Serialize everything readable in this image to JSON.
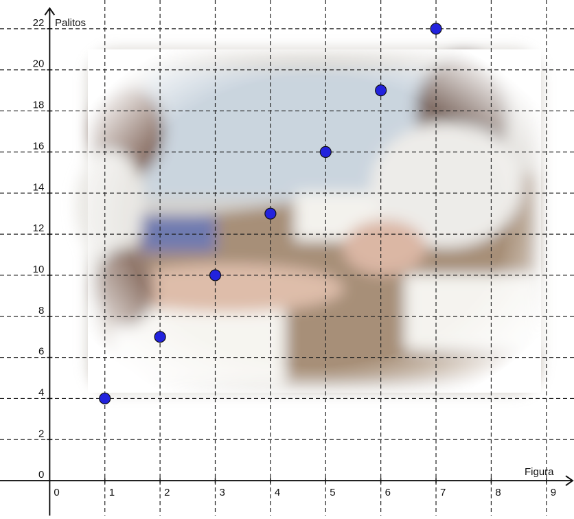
{
  "chart_data": {
    "type": "scatter",
    "title": "",
    "xlabel": "Figura",
    "ylabel": "Palitos",
    "xlim": [
      -0.9,
      9.5
    ],
    "ylim": [
      -1.7,
      23.4
    ],
    "x_ticks": [
      0,
      1,
      2,
      3,
      4,
      5,
      6,
      7,
      8,
      9
    ],
    "x_tick_labels": [
      "0",
      "1",
      "2",
      "3",
      "4",
      "5",
      "6",
      "7",
      "8",
      "9"
    ],
    "y_ticks": [
      0,
      2,
      4,
      6,
      8,
      10,
      12,
      14,
      16,
      18,
      20,
      22
    ],
    "y_tick_labels": [
      "0",
      "2",
      "4",
      "6",
      "8",
      "10",
      "12",
      "14",
      "16",
      "18",
      "20",
      "22"
    ],
    "grid": true,
    "grid_style": "dashed",
    "background_photo": true,
    "point_color": "#2222dd",
    "points": [
      {
        "x": 1,
        "y": 4
      },
      {
        "x": 2,
        "y": 7
      },
      {
        "x": 3,
        "y": 10
      },
      {
        "x": 4,
        "y": 13
      },
      {
        "x": 5,
        "y": 16
      },
      {
        "x": 6,
        "y": 19
      },
      {
        "x": 7,
        "y": 22
      }
    ]
  }
}
